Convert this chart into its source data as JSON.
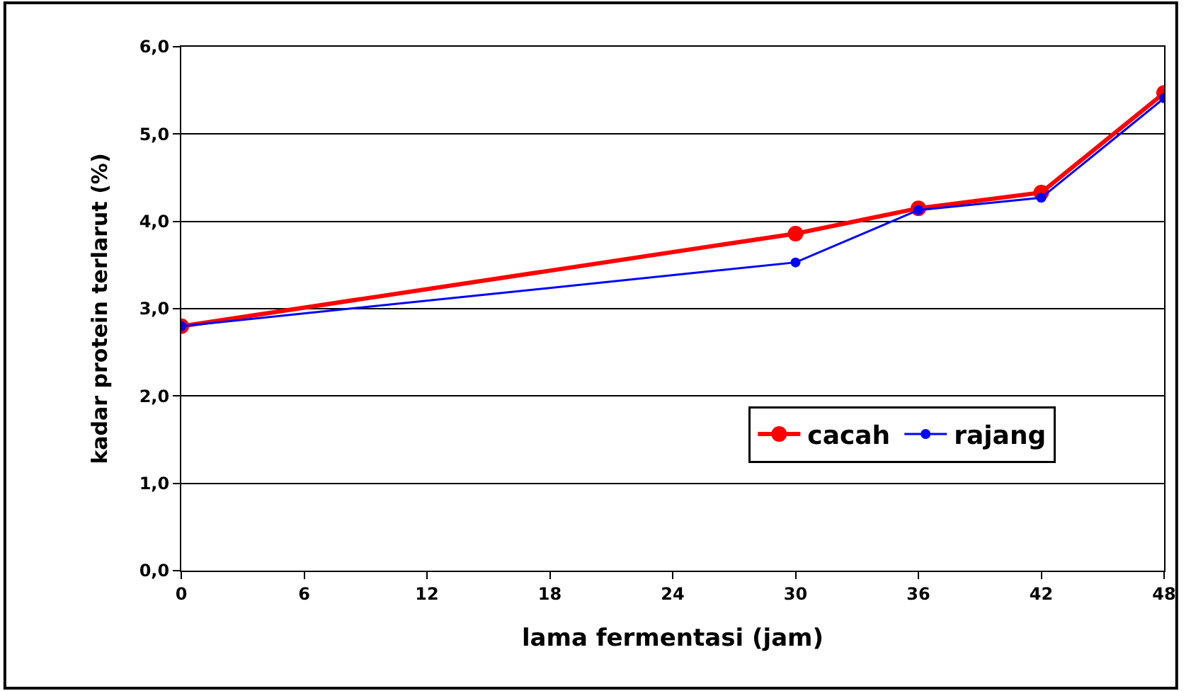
{
  "chart_data": {
    "type": "line",
    "xlabel": "lama fermentasi (jam)",
    "ylabel": "kadar protein terlarut (%)",
    "x": [
      0,
      30,
      36,
      42,
      48
    ],
    "series": [
      {
        "name": "cacah",
        "color": "#ff0000",
        "values": [
          2.8,
          3.86,
          4.15,
          4.33,
          5.47
        ]
      },
      {
        "name": "rajang",
        "color": "#0000ff",
        "values": [
          2.8,
          3.53,
          4.13,
          4.27,
          5.41
        ]
      }
    ],
    "xlim": [
      0,
      48
    ],
    "xticks": [
      0,
      6,
      12,
      18,
      24,
      30,
      36,
      42,
      48
    ],
    "ylim": [
      0,
      6
    ],
    "yticks": [
      {
        "value": 0,
        "label": "0,0"
      },
      {
        "value": 1,
        "label": "1,0"
      },
      {
        "value": 2,
        "label": "2,0"
      },
      {
        "value": 3,
        "label": "3,0"
      },
      {
        "value": 4,
        "label": "4,0"
      },
      {
        "value": 5,
        "label": "5,0"
      },
      {
        "value": 6,
        "label": "6,0"
      }
    ],
    "grid": "y",
    "legend": "bottom right",
    "marker": "circle",
    "line_style": "solid"
  }
}
